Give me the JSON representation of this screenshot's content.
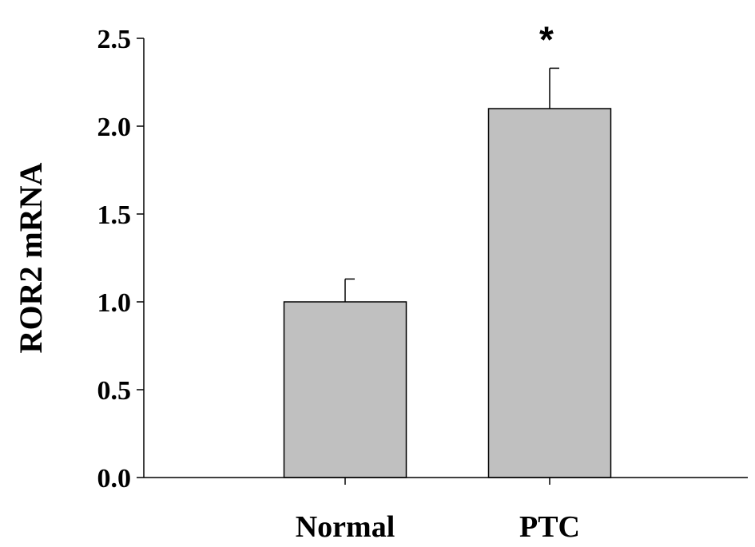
{
  "chart_data": {
    "type": "bar",
    "categories": [
      "Normal",
      "PTC"
    ],
    "values": [
      1.0,
      2.1
    ],
    "error": [
      0.13,
      0.23
    ],
    "annotations": [
      "",
      "*"
    ],
    "title": "",
    "xlabel": "",
    "ylabel": "ROR2 mRNA",
    "ylim": [
      0,
      2.5
    ],
    "yticks": [
      "0.0",
      "0.5",
      "1.0",
      "1.5",
      "2.0",
      "2.5"
    ],
    "grid": false,
    "bar_color": "#c0c0c0",
    "edge_color": "#000000"
  }
}
